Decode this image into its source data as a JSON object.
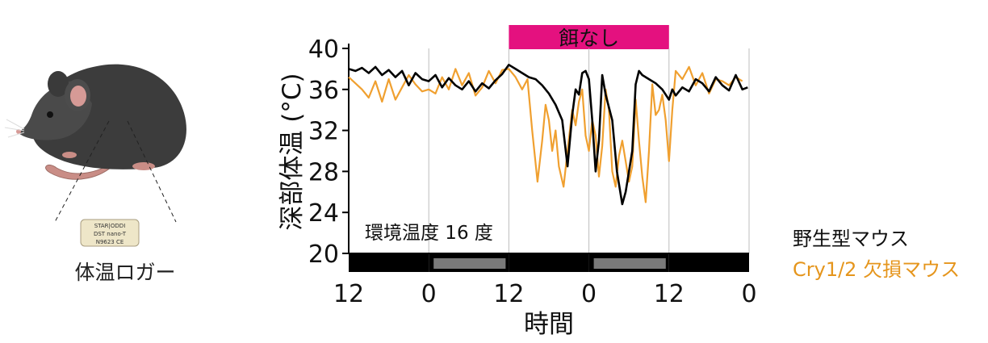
{
  "mouse_panel": {
    "logger_label_lines": [
      "STAR|ODDI",
      "DST nano-T",
      "N9623 CE"
    ],
    "caption": "体温ロガー"
  },
  "chart_data": {
    "type": "line",
    "ylabel": "深部体温 (°C)",
    "xlabel": "時間",
    "ylim": [
      20,
      40
    ],
    "yticks": [
      20,
      24,
      28,
      32,
      36,
      40
    ],
    "xlim": [
      0,
      60
    ],
    "x_tick_positions": [
      0,
      12,
      24,
      36,
      48,
      60
    ],
    "x_tick_labels": [
      "12",
      "0",
      "12",
      "0",
      "12",
      "0"
    ],
    "grid": "vertical",
    "annotation": "環境温度 16 度",
    "fasting_bar": {
      "label": "餌なし",
      "x_range": [
        24,
        48
      ],
      "color": "#e4117f"
    },
    "light_dark_bar": [
      {
        "x_range": [
          0,
          12
        ],
        "phase": "dark",
        "color": "#000000"
      },
      {
        "x_range": [
          12,
          24
        ],
        "phase": "light",
        "color": "#7a7a7a"
      },
      {
        "x_range": [
          24,
          36
        ],
        "phase": "dark",
        "color": "#000000"
      },
      {
        "x_range": [
          36,
          48
        ],
        "phase": "light",
        "color": "#7a7a7a"
      },
      {
        "x_range": [
          48,
          60
        ],
        "phase": "dark",
        "color": "#000000"
      }
    ],
    "legend_position": "right",
    "series": [
      {
        "name": "野生型マウス",
        "color": "#000000",
        "points": [
          [
            0,
            38.0
          ],
          [
            1,
            37.8
          ],
          [
            2,
            38.1
          ],
          [
            3,
            37.6
          ],
          [
            4,
            38.2
          ],
          [
            5,
            37.4
          ],
          [
            6,
            37.9
          ],
          [
            7,
            37.2
          ],
          [
            8,
            37.8
          ],
          [
            9,
            36.4
          ],
          [
            10,
            37.6
          ],
          [
            11,
            37.0
          ],
          [
            12,
            36.8
          ],
          [
            13,
            37.4
          ],
          [
            14,
            36.2
          ],
          [
            15,
            37.1
          ],
          [
            16,
            36.4
          ],
          [
            17,
            36.0
          ],
          [
            18,
            36.8
          ],
          [
            19,
            35.8
          ],
          [
            20,
            36.6
          ],
          [
            21,
            36.1
          ],
          [
            22,
            36.9
          ],
          [
            23,
            37.5
          ],
          [
            24,
            38.4
          ],
          [
            25,
            38.0
          ],
          [
            26,
            37.6
          ],
          [
            27,
            37.2
          ],
          [
            28,
            37.0
          ],
          [
            29,
            36.4
          ],
          [
            30,
            35.6
          ],
          [
            31,
            34.5
          ],
          [
            32,
            33.0
          ],
          [
            32.8,
            28.5
          ],
          [
            33.5,
            33.5
          ],
          [
            34,
            36.0
          ],
          [
            34.5,
            35.5
          ],
          [
            35,
            37.6
          ],
          [
            35.5,
            37.8
          ],
          [
            36,
            37.0
          ],
          [
            36.5,
            33.0
          ],
          [
            37,
            28.0
          ],
          [
            37.5,
            31.0
          ],
          [
            38,
            37.4
          ],
          [
            38.5,
            35.5
          ],
          [
            39.5,
            33.0
          ],
          [
            40.2,
            28.0
          ],
          [
            41,
            24.8
          ],
          [
            41.5,
            26.0
          ],
          [
            42,
            28.0
          ],
          [
            42.5,
            30.0
          ],
          [
            43,
            36.5
          ],
          [
            43.5,
            37.8
          ],
          [
            44,
            37.4
          ],
          [
            45,
            37.0
          ],
          [
            46,
            36.6
          ],
          [
            47,
            36.0
          ],
          [
            48,
            35.0
          ],
          [
            48.5,
            36.0
          ],
          [
            49,
            35.4
          ],
          [
            50,
            36.2
          ],
          [
            51,
            35.8
          ],
          [
            52,
            37.0
          ],
          [
            53,
            36.6
          ],
          [
            54,
            35.8
          ],
          [
            55,
            37.2
          ],
          [
            56,
            36.4
          ],
          [
            57,
            35.9
          ],
          [
            58,
            37.4
          ],
          [
            59,
            36.0
          ],
          [
            59.8,
            36.2
          ]
        ]
      },
      {
        "name": "Cry1/2 欠損マウス",
        "color": "#f0a030",
        "points": [
          [
            0,
            37.2
          ],
          [
            1,
            36.6
          ],
          [
            2,
            36.0
          ],
          [
            3,
            35.2
          ],
          [
            4,
            36.8
          ],
          [
            5,
            34.8
          ],
          [
            6,
            37.0
          ],
          [
            7,
            35.0
          ],
          [
            8,
            36.2
          ],
          [
            9,
            37.4
          ],
          [
            10,
            36.5
          ],
          [
            11,
            35.8
          ],
          [
            12,
            36.0
          ],
          [
            13,
            35.6
          ],
          [
            14,
            37.2
          ],
          [
            15,
            36.0
          ],
          [
            16,
            38.0
          ],
          [
            17,
            36.4
          ],
          [
            18,
            37.6
          ],
          [
            19,
            35.4
          ],
          [
            20,
            36.2
          ],
          [
            21,
            37.8
          ],
          [
            22,
            36.6
          ],
          [
            23,
            37.9
          ],
          [
            24,
            38.0
          ],
          [
            25,
            37.2
          ],
          [
            26,
            36.0
          ],
          [
            26.8,
            37.0
          ],
          [
            27.5,
            32.0
          ],
          [
            28.3,
            27.0
          ],
          [
            29,
            31.0
          ],
          [
            29.5,
            34.5
          ],
          [
            30,
            33.0
          ],
          [
            30.5,
            30.0
          ],
          [
            31,
            32.0
          ],
          [
            31.5,
            28.5
          ],
          [
            32.2,
            26.5
          ],
          [
            32.8,
            30.0
          ],
          [
            33.5,
            34.0
          ],
          [
            34,
            32.5
          ],
          [
            34.5,
            34.8
          ],
          [
            35,
            36.0
          ],
          [
            35.5,
            31.5
          ],
          [
            36,
            30.0
          ],
          [
            36.5,
            33.0
          ],
          [
            37,
            31.5
          ],
          [
            37.5,
            27.5
          ],
          [
            38,
            30.5
          ],
          [
            38.5,
            36.0
          ],
          [
            39,
            34.0
          ],
          [
            39.5,
            28.0
          ],
          [
            40,
            26.5
          ],
          [
            40.5,
            29.5
          ],
          [
            41,
            31.0
          ],
          [
            41.5,
            29.0
          ],
          [
            42,
            27.0
          ],
          [
            42.5,
            28.5
          ],
          [
            43,
            35.0
          ],
          [
            43.5,
            31.0
          ],
          [
            44,
            27.5
          ],
          [
            44.5,
            25.0
          ],
          [
            45,
            30.0
          ],
          [
            45.5,
            36.5
          ],
          [
            46,
            33.5
          ],
          [
            46.5,
            34.0
          ],
          [
            47,
            35.5
          ],
          [
            47.5,
            33.0
          ],
          [
            48,
            29.0
          ],
          [
            48.5,
            34.0
          ],
          [
            49,
            37.8
          ],
          [
            50,
            37.0
          ],
          [
            51,
            38.2
          ],
          [
            52,
            36.4
          ],
          [
            53,
            37.6
          ],
          [
            54,
            35.6
          ],
          [
            55,
            37.0
          ],
          [
            56,
            36.8
          ],
          [
            57,
            36.4
          ],
          [
            58,
            37.2
          ],
          [
            59,
            36.8
          ]
        ]
      }
    ]
  }
}
